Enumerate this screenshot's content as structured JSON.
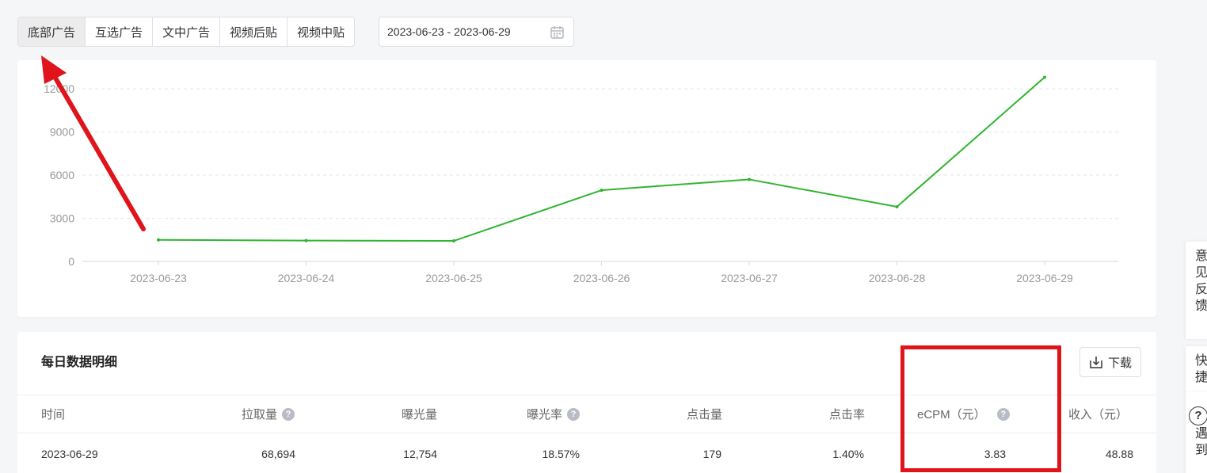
{
  "tabs": [
    {
      "label": "底部广告",
      "active": true
    },
    {
      "label": "互选广告",
      "active": false
    },
    {
      "label": "文中广告",
      "active": false
    },
    {
      "label": "视频后贴",
      "active": false
    },
    {
      "label": "视频中贴",
      "active": false
    }
  ],
  "date_range": {
    "value": "2023-06-23 - 2023-06-29",
    "icon": "calendar-icon"
  },
  "chart_data": {
    "type": "line",
    "x": [
      "2023-06-23",
      "2023-06-24",
      "2023-06-25",
      "2023-06-26",
      "2023-06-27",
      "2023-06-28",
      "2023-06-29"
    ],
    "series": [
      {
        "values": [
          1500,
          1450,
          1430,
          4950,
          5700,
          3800,
          12800
        ],
        "color": "#2fb52f"
      }
    ],
    "yticks": [
      "0",
      "3000",
      "6000",
      "9000",
      "12000"
    ],
    "ylim": [
      0,
      12000
    ],
    "grid": true
  },
  "table": {
    "title": "每日数据明细",
    "download_label": "下载",
    "columns": [
      {
        "label": "时间",
        "help": false
      },
      {
        "label": "拉取量",
        "help": true
      },
      {
        "label": "曝光量",
        "help": false
      },
      {
        "label": "曝光率",
        "help": true
      },
      {
        "label": "点击量",
        "help": false
      },
      {
        "label": "点击率",
        "help": false
      },
      {
        "label": "eCPM（元）",
        "help": true
      },
      {
        "label": "收入（元）",
        "help": false
      }
    ],
    "rows": [
      [
        "2023-06-29",
        "68,694",
        "12,754",
        "18.57%",
        "179",
        "1.40%",
        "3.83",
        "48.88"
      ]
    ]
  },
  "float_panel": {
    "feedback_chars": [
      "意",
      "见",
      "反",
      "馈"
    ],
    "shortcut_chars": [
      "快",
      "捷"
    ],
    "help_chars": [
      "遇",
      "到"
    ],
    "help_icon": "?"
  },
  "colors": {
    "line": "#2fb52f",
    "annotation": "#e0141b"
  }
}
